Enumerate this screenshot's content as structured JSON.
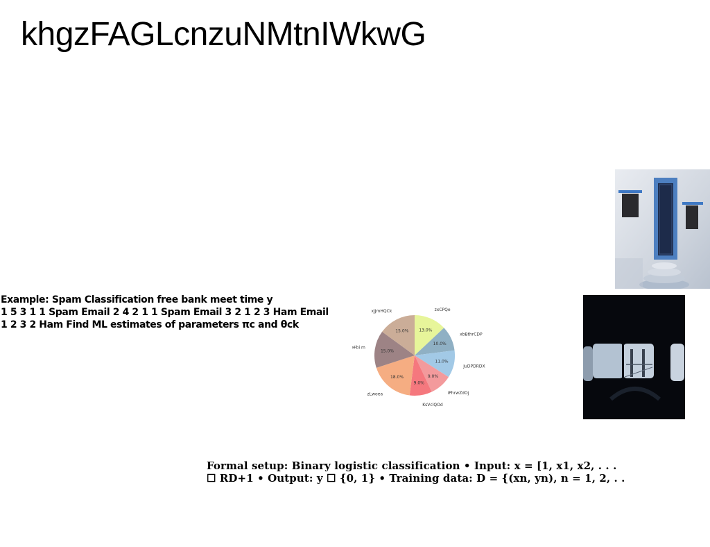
{
  "slide": {
    "title": "khgzFAGLcnzuNMtnIWkwG"
  },
  "spam_example": {
    "lines": [
      "Example: Spam Classification free bank meet time y",
      "1 5 3 1 1 Spam Email 2 4 2 1 1 Spam Email 3 2 1 2 3 Ham Email",
      "1 2 3 2 Ham Find ML estimates of parameters πc and θck"
    ]
  },
  "formal_setup": {
    "lines": [
      "Formal setup: Binary logistic classification • Input: x = [1, x1, x2, . . .",
      "☐ RD+1 • Output: y ☐ {0, 1} • Training data: D = {(xn, yn), n = 1, 2, . ."
    ]
  },
  "chart_data": {
    "type": "pie",
    "start_angle": 90,
    "direction": "clockwise",
    "slices": [
      {
        "label": "zxCPQe",
        "value": 13.0,
        "pct_label": "13.0%",
        "color": "#e7f59a"
      },
      {
        "label": "xbBthrCDP",
        "value": 10.0,
        "pct_label": "10.0%",
        "color": "#8fb0c4"
      },
      {
        "label": "JuDPDRDX",
        "value": 11.0,
        "pct_label": "11.0%",
        "color": "#a2c9e6"
      },
      {
        "label": "iPhrwZdOj",
        "value": 9.0,
        "pct_label": "9.0%",
        "color": "#f39a9c"
      },
      {
        "label": "KsVclQOd",
        "value": 9.0,
        "pct_label": "9.0%",
        "color": "#f5787e"
      },
      {
        "label": "zLwoea",
        "value": 18.0,
        "pct_label": "18.0%",
        "color": "#f5ad82"
      },
      {
        "label": "eFbi m",
        "value": 15.0,
        "pct_label": "15.0%",
        "color": "#9d8385"
      },
      {
        "label": "xJJmHQCk",
        "value": 15.0,
        "pct_label": "15.0%",
        "color": "#cbad98"
      }
    ]
  },
  "images": {
    "door_photo": "blue-door-white-wall",
    "window_photo": "dark-vehicle-window-bridge"
  }
}
